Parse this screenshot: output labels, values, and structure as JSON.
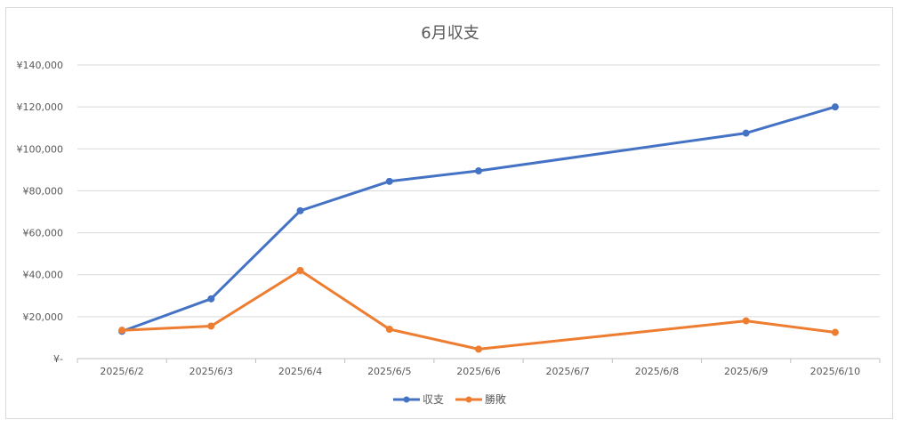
{
  "chart_data": {
    "type": "line",
    "title": "6月収支",
    "categories": [
      "2025/6/2",
      "2025/6/3",
      "2025/6/4",
      "2025/6/5",
      "2025/6/6",
      "2025/6/7",
      "2025/6/8",
      "2025/6/9",
      "2025/6/10"
    ],
    "y_tick_labels": [
      "¥-",
      "¥20,000",
      "¥40,000",
      "¥60,000",
      "¥80,000",
      "¥100,000",
      "¥120,000",
      "¥140,000"
    ],
    "ylim": [
      0,
      140000
    ],
    "grid": true,
    "legend_position": "bottom",
    "series": [
      {
        "name": "収支",
        "color": "#4472c4",
        "points": [
          {
            "x": "2025/6/2",
            "y": 13000
          },
          {
            "x": "2025/6/3",
            "y": 28500
          },
          {
            "x": "2025/6/4",
            "y": 70500
          },
          {
            "x": "2025/6/5",
            "y": 84500
          },
          {
            "x": "2025/6/6",
            "y": 89500
          },
          {
            "x": "2025/6/9",
            "y": 107500
          },
          {
            "x": "2025/6/10",
            "y": 120000
          }
        ]
      },
      {
        "name": "勝敗",
        "color": "#ed7d31",
        "points": [
          {
            "x": "2025/6/2",
            "y": 13500
          },
          {
            "x": "2025/6/3",
            "y": 15500
          },
          {
            "x": "2025/6/4",
            "y": 42000
          },
          {
            "x": "2025/6/5",
            "y": 14000
          },
          {
            "x": "2025/6/6",
            "y": 4500
          },
          {
            "x": "2025/6/9",
            "y": 18000
          },
          {
            "x": "2025/6/10",
            "y": 12500
          }
        ]
      }
    ]
  }
}
